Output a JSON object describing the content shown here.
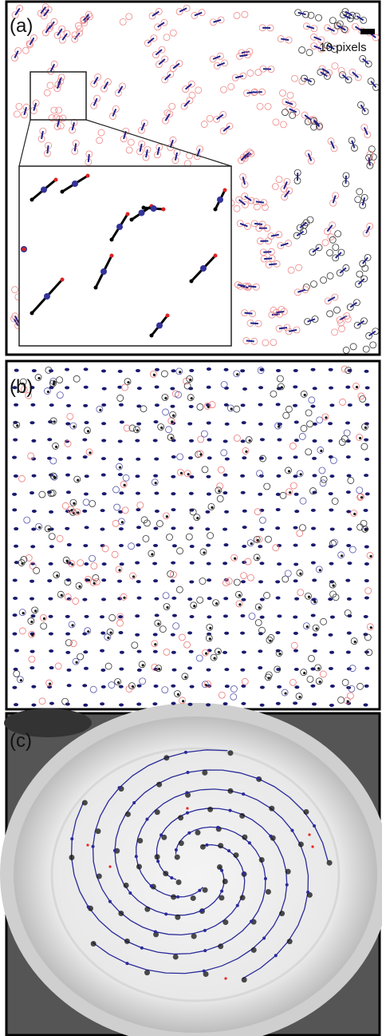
{
  "panels": [
    {
      "label": "(a)",
      "scale_label": "10 pixels"
    },
    {
      "label": "(b)"
    },
    {
      "label": "(c)"
    }
  ]
}
